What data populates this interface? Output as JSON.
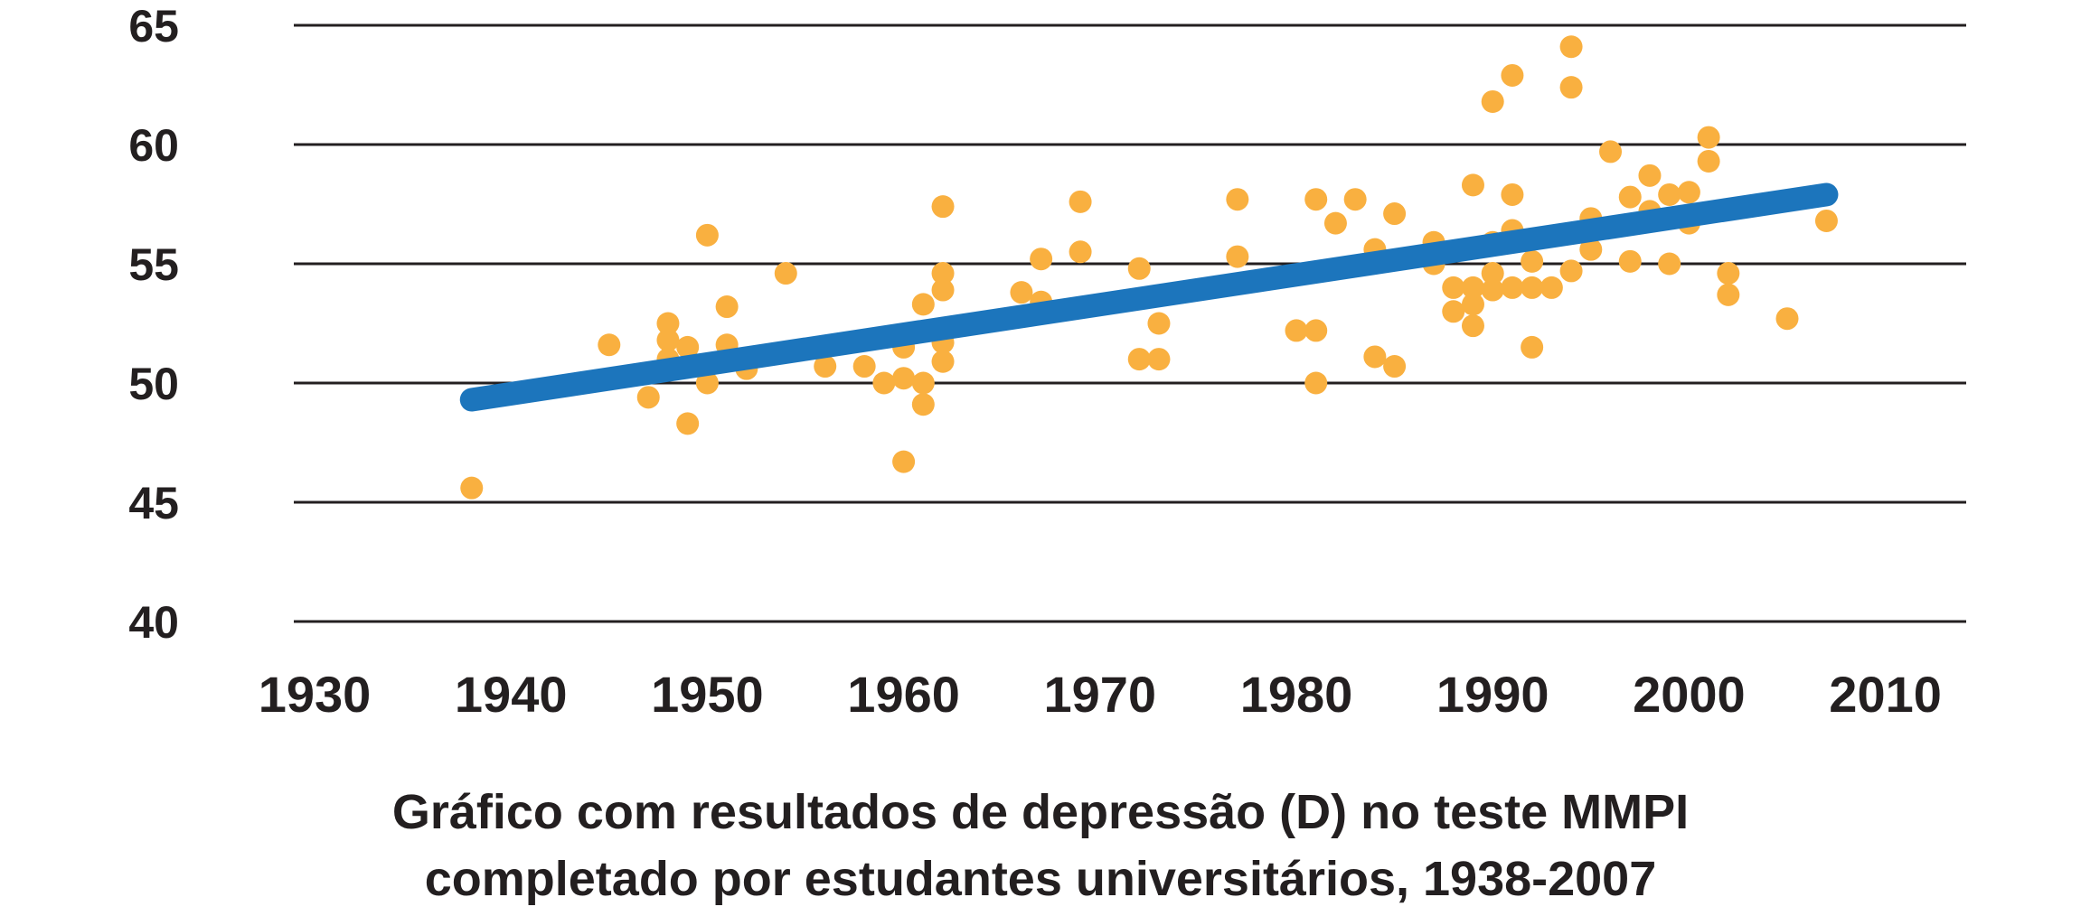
{
  "chart_data": {
    "type": "scatter",
    "title": "Gráfico com resultados de depressão (D) no teste MMPI",
    "subtitle": "completado por estudantes universitários, 1938-2007",
    "xlim": [
      1930,
      2010
    ],
    "ylim": [
      40,
      65
    ],
    "x_ticks": [
      "1930",
      "1940",
      "1950",
      "1960",
      "1970",
      "1980",
      "1990",
      "2000",
      "2010"
    ],
    "y_ticks": [
      "65",
      "60",
      "55",
      "50",
      "45",
      "40"
    ],
    "grid": "horizontal",
    "colors": {
      "points": "#f9b040",
      "trend": "#1c75bc",
      "grid": "#231f20",
      "text": "#231f20"
    },
    "points": [
      [
        1938,
        45.6
      ],
      [
        1945,
        51.6
      ],
      [
        1947,
        49.4
      ],
      [
        1948,
        52.5
      ],
      [
        1948,
        51.8
      ],
      [
        1948,
        51.0
      ],
      [
        1949,
        48.3
      ],
      [
        1949,
        51.5
      ],
      [
        1950,
        50.0
      ],
      [
        1950,
        56.2
      ],
      [
        1951,
        53.2
      ],
      [
        1951,
        51.6
      ],
      [
        1952,
        50.6
      ],
      [
        1954,
        54.6
      ],
      [
        1956,
        50.7
      ],
      [
        1958,
        50.7
      ],
      [
        1959,
        50.0
      ],
      [
        1960,
        51.5
      ],
      [
        1960,
        50.2
      ],
      [
        1960,
        46.7
      ],
      [
        1961,
        53.3
      ],
      [
        1961,
        50.0
      ],
      [
        1961,
        49.1
      ],
      [
        1962,
        54.6
      ],
      [
        1962,
        57.4
      ],
      [
        1962,
        53.9
      ],
      [
        1962,
        51.7
      ],
      [
        1962,
        50.9
      ],
      [
        1966,
        53.8
      ],
      [
        1967,
        55.2
      ],
      [
        1967,
        53.4
      ],
      [
        1969,
        57.6
      ],
      [
        1969,
        55.5
      ],
      [
        1972,
        54.8
      ],
      [
        1972,
        51.0
      ],
      [
        1973,
        52.5
      ],
      [
        1973,
        51.0
      ],
      [
        1977,
        57.7
      ],
      [
        1977,
        55.3
      ],
      [
        1980,
        52.2
      ],
      [
        1981,
        52.2
      ],
      [
        1981,
        50.0
      ],
      [
        1981,
        57.7
      ],
      [
        1982,
        56.7
      ],
      [
        1983,
        57.7
      ],
      [
        1984,
        51.1
      ],
      [
        1984,
        55.6
      ],
      [
        1985,
        57.1
      ],
      [
        1985,
        50.7
      ],
      [
        1987,
        55.9
      ],
      [
        1987,
        55.0
      ],
      [
        1988,
        54.0
      ],
      [
        1988,
        53.0
      ],
      [
        1989,
        52.4
      ],
      [
        1989,
        53.3
      ],
      [
        1989,
        58.3
      ],
      [
        1989,
        54.0
      ],
      [
        1990,
        55.9
      ],
      [
        1990,
        54.6
      ],
      [
        1990,
        53.9
      ],
      [
        1990,
        61.8
      ],
      [
        1991,
        62.9
      ],
      [
        1991,
        57.9
      ],
      [
        1991,
        56.4
      ],
      [
        1991,
        54.0
      ],
      [
        1992,
        55.1
      ],
      [
        1992,
        54.0
      ],
      [
        1992,
        51.5
      ],
      [
        1993,
        54.0
      ],
      [
        1994,
        54.7
      ],
      [
        1994,
        64.1
      ],
      [
        1994,
        62.4
      ],
      [
        1995,
        56.9
      ],
      [
        1995,
        55.6
      ],
      [
        1996,
        59.7
      ],
      [
        1997,
        57.8
      ],
      [
        1997,
        55.1
      ],
      [
        1998,
        58.7
      ],
      [
        1998,
        57.2
      ],
      [
        1999,
        57.9
      ],
      [
        1999,
        55.0
      ],
      [
        2000,
        56.7
      ],
      [
        2000,
        58.0
      ],
      [
        2001,
        60.3
      ],
      [
        2001,
        59.3
      ],
      [
        2002,
        54.6
      ],
      [
        2002,
        53.7
      ],
      [
        2005,
        52.7
      ],
      [
        2007,
        56.8
      ]
    ],
    "trend": {
      "start": [
        1938,
        49.3
      ],
      "end": [
        2007,
        57.9
      ]
    }
  }
}
